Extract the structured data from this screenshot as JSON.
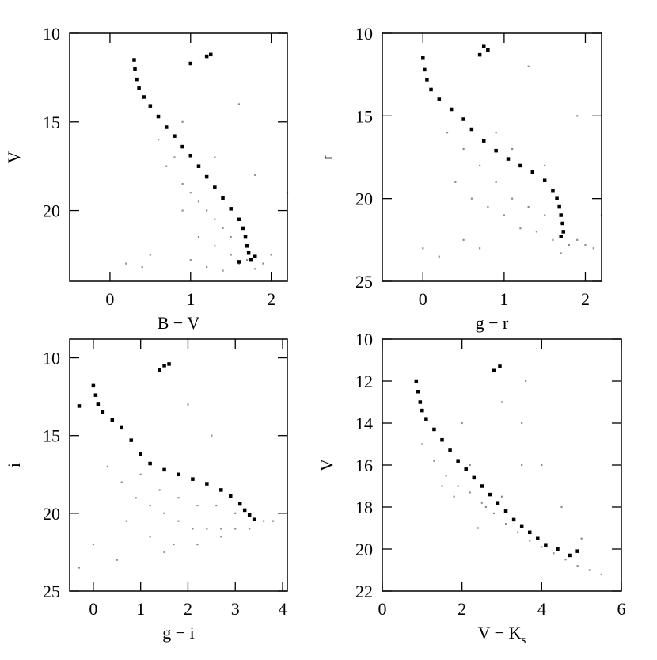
{
  "chart_data": [
    {
      "type": "scatter",
      "xlabel": "B − V",
      "ylabel": "V",
      "xlim": [
        -0.5,
        2.2
      ],
      "ylim": [
        24,
        10
      ],
      "xticks": [
        0,
        1,
        2
      ],
      "yticks": [
        10,
        15,
        20
      ],
      "series": [
        {
          "color": "#8c8c8c",
          "x": [
            0.6,
            0.8,
            0.9,
            1.0,
            1.1,
            1.2,
            1.3,
            1.4,
            1.5,
            0.7,
            0.9,
            1.1,
            1.3,
            1.5,
            1.7,
            1.9,
            1.0,
            1.2,
            1.4,
            1.6,
            1.8,
            2.0,
            0.2,
            0.5,
            1.6,
            2.2,
            0.9,
            1.3,
            1.8,
            0.4
          ],
          "values": [
            16,
            17,
            18.5,
            19,
            19.5,
            20,
            20.5,
            21,
            21.5,
            17.5,
            20,
            21.5,
            22,
            22.5,
            22.8,
            23,
            22.8,
            23.2,
            23.4,
            23,
            23.3,
            22.5,
            23,
            22.5,
            14,
            19,
            15,
            17,
            18,
            23.2
          ]
        },
        {
          "color": "#000000",
          "x": [
            0.3,
            0.31,
            0.33,
            0.36,
            0.42,
            0.5,
            0.6,
            0.7,
            0.8,
            0.9,
            1.0,
            1.1,
            1.2,
            1.3,
            1.4,
            1.5,
            1.6,
            1.65,
            1.68,
            1.7,
            1.72,
            1.75,
            1.8,
            1.6,
            1.2,
            1.25,
            1.0
          ],
          "values": [
            11.5,
            12,
            12.6,
            13.1,
            13.6,
            14.1,
            14.7,
            15.3,
            15.8,
            16.4,
            16.9,
            17.5,
            18.1,
            18.7,
            19.3,
            19.9,
            20.5,
            21.0,
            21.5,
            22.0,
            22.4,
            22.8,
            22.6,
            22.9,
            11.3,
            11.2,
            11.7
          ]
        }
      ]
    },
    {
      "type": "scatter",
      "xlabel": "g − r",
      "ylabel": "r",
      "xlim": [
        -0.5,
        2.2
      ],
      "ylim": [
        25,
        10
      ],
      "xticks": [
        0,
        1,
        2
      ],
      "yticks": [
        10,
        15,
        20,
        25
      ],
      "series": [
        {
          "color": "#8c8c8c",
          "x": [
            0.3,
            0.5,
            0.7,
            0.9,
            1.1,
            1.3,
            1.5,
            1.7,
            1.9,
            0.4,
            0.6,
            0.8,
            1.0,
            1.2,
            1.4,
            1.6,
            1.8,
            2.0,
            0.9,
            1.1,
            0.5,
            0.7,
            1.3,
            1.9,
            2.2,
            0.0,
            0.2,
            1.5,
            1.7,
            2.1
          ],
          "values": [
            16,
            17,
            18,
            19,
            20,
            20.5,
            21,
            21.5,
            22.5,
            19,
            20,
            20.5,
            21,
            21.8,
            22,
            22.5,
            22.8,
            22.8,
            16,
            17,
            22.5,
            23,
            12,
            15,
            21,
            23,
            23.5,
            18,
            23.3,
            23
          ]
        },
        {
          "color": "#000000",
          "x": [
            0.0,
            0.02,
            0.05,
            0.1,
            0.2,
            0.35,
            0.5,
            0.6,
            0.75,
            0.9,
            1.05,
            1.2,
            1.35,
            1.5,
            1.6,
            1.65,
            1.68,
            1.7,
            1.72,
            1.73,
            1.7,
            0.75,
            0.8,
            0.7
          ],
          "values": [
            11.5,
            12.2,
            12.8,
            13.4,
            14,
            14.6,
            15.2,
            15.8,
            16.5,
            17.1,
            17.6,
            18.0,
            18.4,
            18.9,
            19.5,
            20.0,
            20.5,
            21.0,
            21.5,
            22.0,
            22.3,
            10.8,
            11.0,
            11.3
          ]
        }
      ]
    },
    {
      "type": "scatter",
      "xlabel": "g − i",
      "ylabel": "i",
      "xlim": [
        -0.5,
        4.1
      ],
      "ylim": [
        25,
        8.8
      ],
      "xticks": [
        0,
        1,
        2,
        3,
        4
      ],
      "yticks": [
        10,
        15,
        20,
        25
      ],
      "series": [
        {
          "color": "#8c8c8c",
          "x": [
            0.3,
            0.6,
            0.9,
            1.2,
            1.5,
            1.8,
            2.1,
            2.4,
            2.7,
            3.0,
            3.3,
            3.6,
            1.0,
            1.4,
            1.8,
            2.2,
            2.6,
            3.0,
            0.7,
            1.2,
            1.7,
            2.2,
            2.7,
            0.0,
            -0.3,
            0.5,
            2.0,
            2.5,
            3.8,
            1.5
          ],
          "values": [
            17,
            18,
            19,
            19.5,
            20,
            20.5,
            21,
            21,
            21,
            21,
            21,
            20.5,
            17.5,
            18.5,
            19,
            19.5,
            19.5,
            20,
            20.5,
            21.5,
            22,
            22,
            21.5,
            22,
            23.5,
            23,
            13,
            15,
            20.5,
            22.5
          ]
        },
        {
          "color": "#000000",
          "x": [
            0.0,
            0.05,
            0.1,
            0.2,
            0.4,
            0.6,
            0.8,
            1.0,
            1.2,
            1.5,
            1.8,
            2.1,
            2.4,
            2.7,
            2.9,
            3.1,
            3.2,
            3.3,
            3.4,
            1.4,
            1.5,
            1.6,
            -0.3
          ],
          "values": [
            11.8,
            12.4,
            13,
            13.5,
            14,
            14.5,
            15.3,
            16.2,
            16.8,
            17.2,
            17.5,
            17.8,
            18.1,
            18.5,
            18.9,
            19.4,
            19.8,
            20.1,
            20.4,
            10.8,
            10.5,
            10.4,
            13.1
          ]
        }
      ]
    },
    {
      "type": "scatter",
      "xlabel": "V − K",
      "xlabel_sub": "s",
      "ylabel": "V",
      "xlim": [
        0,
        6
      ],
      "ylim": [
        22,
        10
      ],
      "xticks": [
        0,
        2,
        4,
        6
      ],
      "yticks": [
        10,
        12,
        14,
        16,
        18,
        20,
        22
      ],
      "series": [
        {
          "color": "#8c8c8c",
          "x": [
            1.0,
            1.3,
            1.6,
            1.9,
            2.2,
            2.5,
            2.8,
            3.1,
            3.4,
            3.7,
            4.0,
            4.3,
            4.6,
            4.9,
            5.2,
            5.5,
            1.5,
            1.8,
            2.2,
            2.6,
            3.0,
            3.5,
            3.0,
            3.5,
            4.0,
            2.0,
            4.5,
            5.0,
            3.6,
            2.4
          ],
          "values": [
            15,
            15.8,
            16.5,
            17,
            17.3,
            17.8,
            18.3,
            18.8,
            19.2,
            19.6,
            19.9,
            20.2,
            20.5,
            20.8,
            21.0,
            21.2,
            17,
            17.5,
            16,
            18,
            17.5,
            16,
            13,
            14,
            16,
            14,
            18,
            19.5,
            12,
            19
          ]
        },
        {
          "color": "#000000",
          "x": [
            0.85,
            0.9,
            0.95,
            1.0,
            1.1,
            1.3,
            1.5,
            1.7,
            1.9,
            2.1,
            2.3,
            2.5,
            2.7,
            2.9,
            3.1,
            3.3,
            3.5,
            3.7,
            3.9,
            4.1,
            4.4,
            4.7,
            4.9,
            2.8,
            2.95
          ],
          "values": [
            12.0,
            12.5,
            13.0,
            13.4,
            13.8,
            14.3,
            14.8,
            15.3,
            15.8,
            16.2,
            16.6,
            17.0,
            17.4,
            17.8,
            18.2,
            18.6,
            18.9,
            19.2,
            19.5,
            19.8,
            20.0,
            20.3,
            20.1,
            11.5,
            11.3
          ]
        }
      ]
    }
  ]
}
